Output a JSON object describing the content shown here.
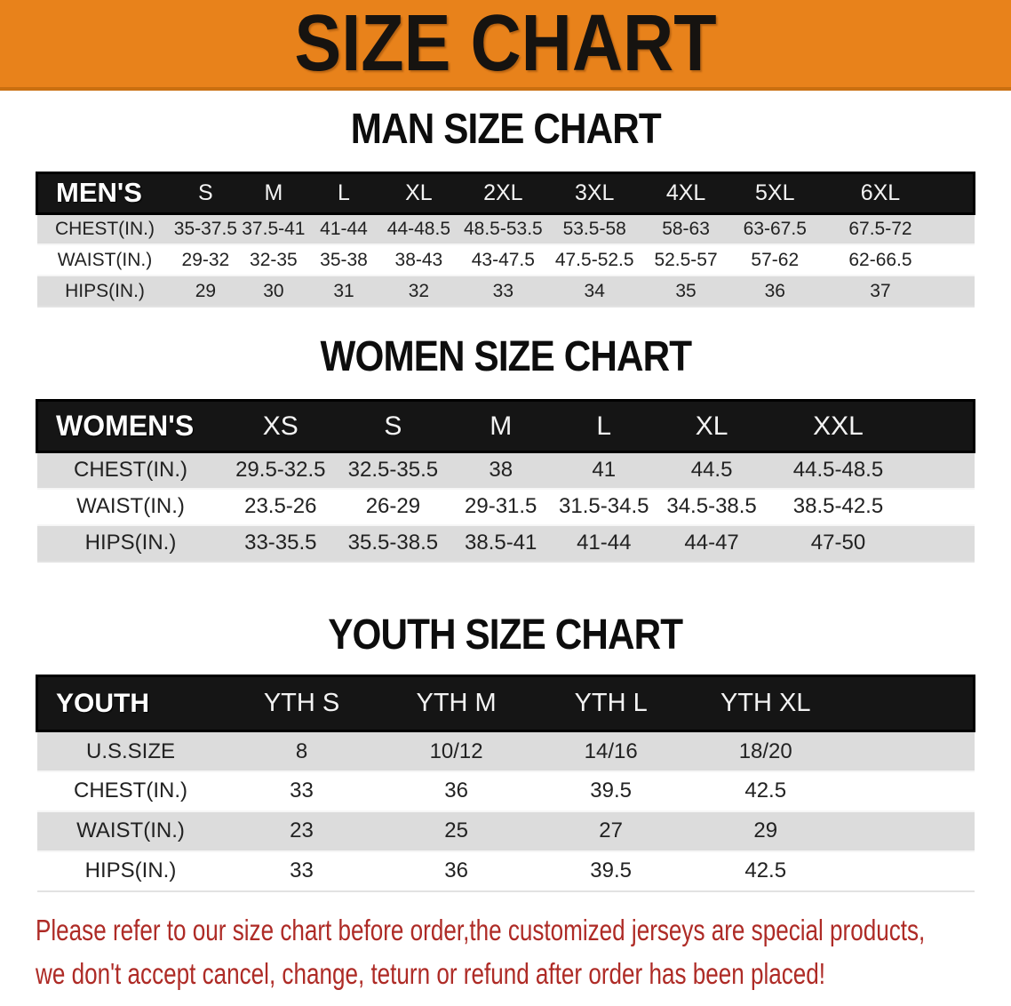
{
  "banner": {
    "title": "SIZE CHART",
    "bg_color": "#E8821B"
  },
  "sections": [
    {
      "id": "mens",
      "title": "MAN SIZE CHART",
      "header_label": "MEN'S",
      "sizes": [
        "S",
        "M",
        "L",
        "XL",
        "2XL",
        "3XL",
        "4XL",
        "5XL",
        "6XL"
      ],
      "rows": [
        {
          "label": "CHEST(IN.)",
          "values": [
            "35-37.5",
            "37.5-41",
            "41-44",
            "44-48.5",
            "48.5-53.5",
            "53.5-58",
            "58-63",
            "63-67.5",
            "67.5-72"
          ]
        },
        {
          "label": "WAIST(IN.)",
          "values": [
            "29-32",
            "32-35",
            "35-38",
            "38-43",
            "43-47.5",
            "47.5-52.5",
            "52.5-57",
            "57-62",
            "62-66.5"
          ]
        },
        {
          "label": "HIPS(IN.)",
          "values": [
            "29",
            "30",
            "31",
            "32",
            "33",
            "34",
            "35",
            "36",
            "37"
          ]
        }
      ]
    },
    {
      "id": "womens",
      "title": "WOMEN SIZE CHART",
      "header_label": "WOMEN'S",
      "sizes": [
        "XS",
        "S",
        "M",
        "L",
        "XL",
        "XXL"
      ],
      "rows": [
        {
          "label": "CHEST(IN.)",
          "values": [
            "29.5-32.5",
            "32.5-35.5",
            "38",
            "41",
            "44.5",
            "44.5-48.5"
          ]
        },
        {
          "label": "WAIST(IN.)",
          "values": [
            "23.5-26",
            "26-29",
            "29-31.5",
            "31.5-34.5",
            "34.5-38.5",
            "38.5-42.5"
          ]
        },
        {
          "label": "HIPS(IN.)",
          "values": [
            "33-35.5",
            "35.5-38.5",
            "38.5-41",
            "41-44",
            "44-47",
            "47-50"
          ]
        }
      ]
    },
    {
      "id": "youth",
      "title": "YOUTH SIZE CHART",
      "header_label": "YOUTH",
      "sizes": [
        "YTH S",
        "YTH M",
        "YTH L",
        "YTH XL"
      ],
      "rows": [
        {
          "label": "U.S.SIZE",
          "values": [
            "8",
            "10/12",
            "14/16",
            "18/20"
          ]
        },
        {
          "label": "CHEST(IN.)",
          "values": [
            "33",
            "36",
            "39.5",
            "42.5"
          ]
        },
        {
          "label": "WAIST(IN.)",
          "values": [
            "23",
            "25",
            "27",
            "29"
          ]
        },
        {
          "label": "HIPS(IN.)",
          "values": [
            "33",
            "36",
            "39.5",
            "42.5"
          ]
        }
      ]
    }
  ],
  "disclaimer": {
    "color": "#AE2B26",
    "lines": [
      "Please refer to our size chart before order,the customized jerseys are special products,",
      "we don't accept cancel, change, teturn or refund after order has been placed!"
    ]
  }
}
